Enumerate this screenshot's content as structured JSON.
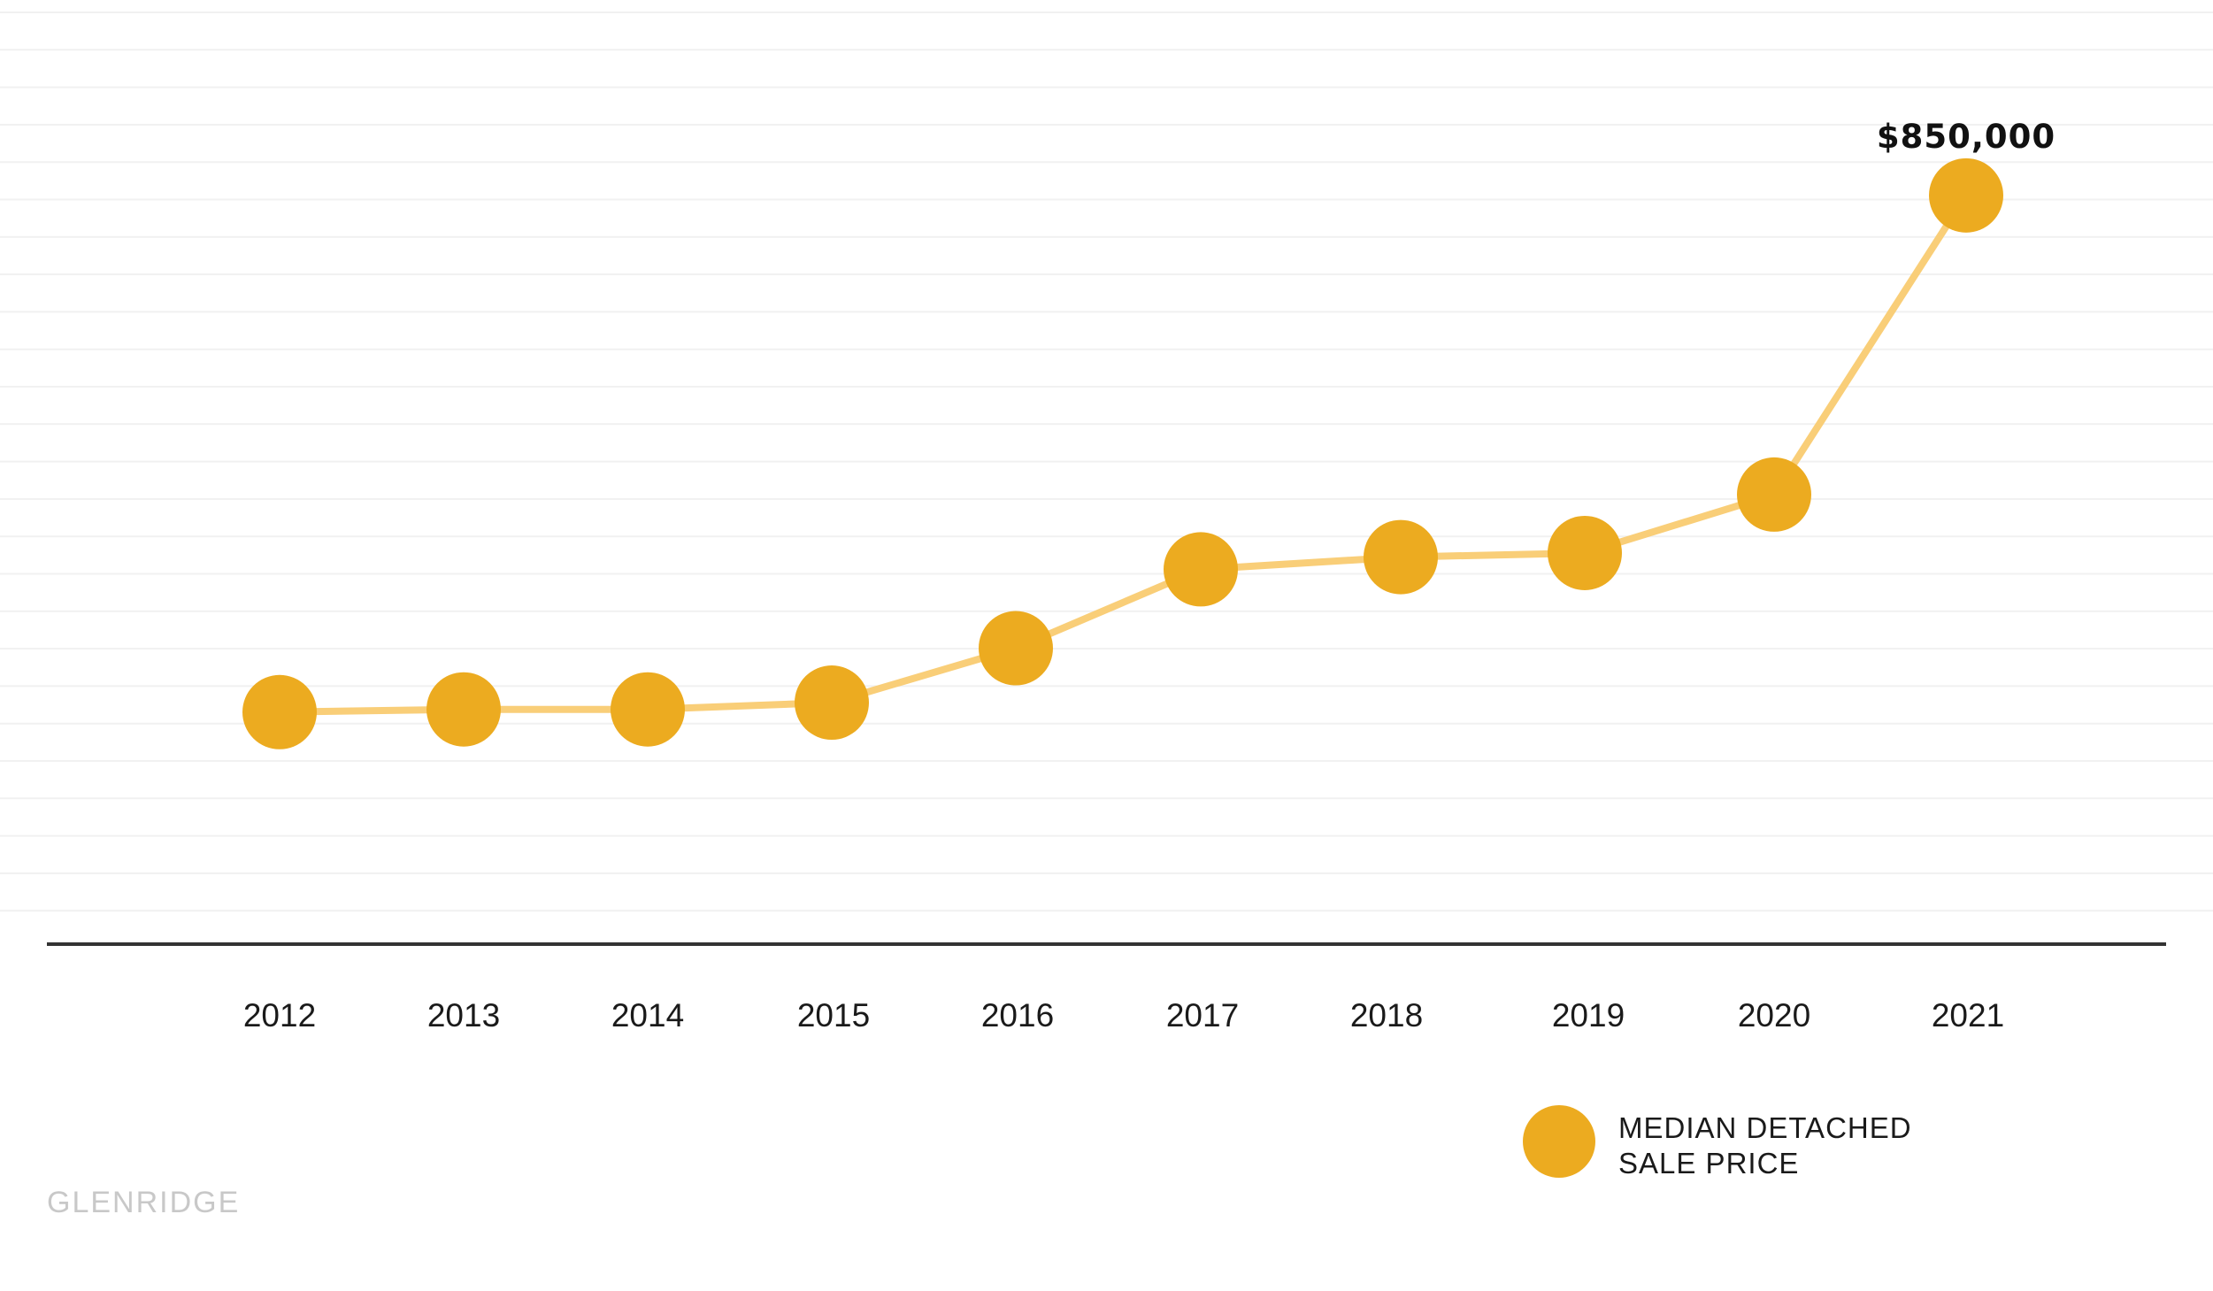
{
  "chart_data": {
    "type": "line",
    "x": [
      "2012",
      "2013",
      "2014",
      "2015",
      "2016",
      "2017",
      "2018",
      "2019",
      "2020",
      "2021"
    ],
    "series": [
      {
        "name": "MEDIAN DETACHED SALE PRICE",
        "values": [
          470000,
          472000,
          472000,
          477000,
          517000,
          575000,
          584000,
          587000,
          630000,
          850000
        ]
      }
    ],
    "y_range": [
      300000,
      900000
    ],
    "grid": true,
    "legend_position": "bottom-right",
    "data_labels": [
      {
        "index": 9,
        "text": "$850,000"
      }
    ]
  },
  "legend": {
    "line1": "MEDIAN DETACHED",
    "line2": "SALE PRICE"
  },
  "brand": "GLENRIDGE",
  "colors": {
    "marker": "#ECAB20",
    "line": "#F9CE78",
    "grid": "#f1f1f1",
    "axis": "#333333"
  }
}
